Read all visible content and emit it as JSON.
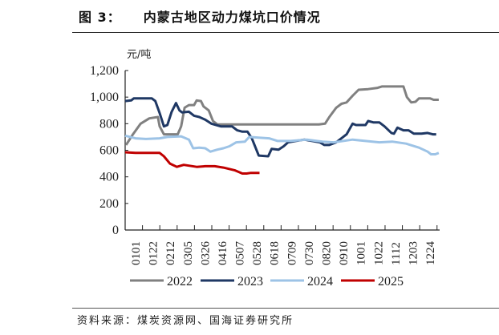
{
  "header": {
    "figure_no": "图 3：",
    "title": "内蒙古地区动力煤坑口价情况"
  },
  "footer": {
    "source": "资料来源：煤炭资源网、国海证券研究所"
  },
  "chart_data": {
    "type": "line",
    "title": "内蒙古地区动力煤坑口价情况",
    "ylabel": "元/吨",
    "ylim": [
      0,
      1200
    ],
    "yticks": [
      "0",
      "200",
      "400",
      "600",
      "800",
      "1,000",
      "1,200"
    ],
    "ytick_values": [
      0,
      200,
      400,
      600,
      800,
      1000,
      1200
    ],
    "xticks": [
      "0101",
      "0122",
      "0212",
      "0305",
      "0326",
      "0416",
      "0507",
      "0528",
      "0618",
      "0709",
      "0730",
      "0820",
      "0910",
      "1001",
      "1022",
      "1112",
      "1203",
      "1224"
    ],
    "grid": false,
    "legend": "bottom",
    "series": [
      {
        "name": "2022",
        "color": "#808080",
        "points": [
          [
            "0102",
            640
          ],
          [
            "0110",
            720
          ],
          [
            "0119",
            800
          ],
          [
            "0129",
            840
          ],
          [
            "0208",
            850
          ],
          [
            "0210",
            780
          ],
          [
            "0215",
            720
          ],
          [
            "0303",
            720
          ],
          [
            "0307",
            780
          ],
          [
            "0311",
            920
          ],
          [
            "0316",
            940
          ],
          [
            "0322",
            940
          ],
          [
            "0325",
            975
          ],
          [
            "0330",
            970
          ],
          [
            "0402",
            930
          ],
          [
            "0408",
            900
          ],
          [
            "0413",
            820
          ],
          [
            "0418",
            795
          ],
          [
            "0814",
            795
          ],
          [
            "0821",
            800
          ],
          [
            "0826",
            850
          ],
          [
            "0903",
            920
          ],
          [
            "0909",
            950
          ],
          [
            "0915",
            960
          ],
          [
            "0922",
            1010
          ],
          [
            "0929",
            1055
          ],
          [
            "1010",
            1060
          ],
          [
            "1021",
            1070
          ],
          [
            "1026",
            1080
          ],
          [
            "1120",
            1080
          ],
          [
            "1124",
            1000
          ],
          [
            "1129",
            960
          ],
          [
            "1204",
            965
          ],
          [
            "1208",
            990
          ],
          [
            "1221",
            990
          ],
          [
            "1225",
            980
          ],
          [
            "1231",
            980
          ]
        ]
      },
      {
        "name": "2023",
        "color": "#1f3864",
        "points": [
          [
            "0101",
            970
          ],
          [
            "0108",
            975
          ],
          [
            "0111",
            990
          ],
          [
            "0201",
            990
          ],
          [
            "0205",
            970
          ],
          [
            "0210",
            880
          ],
          [
            "0215",
            780
          ],
          [
            "0219",
            790
          ],
          [
            "0224",
            890
          ],
          [
            "0301",
            955
          ],
          [
            "0305",
            900
          ],
          [
            "0308",
            885
          ],
          [
            "0316",
            890
          ],
          [
            "0322",
            860
          ],
          [
            "0328",
            850
          ],
          [
            "0404",
            830
          ],
          [
            "0411",
            800
          ],
          [
            "0422",
            780
          ],
          [
            "0505",
            780
          ],
          [
            "0511",
            750
          ],
          [
            "0517",
            740
          ],
          [
            "0523",
            740
          ],
          [
            "0528",
            690
          ],
          [
            "0605",
            560
          ],
          [
            "0616",
            555
          ],
          [
            "0620",
            610
          ],
          [
            "0628",
            605
          ],
          [
            "0704",
            630
          ],
          [
            "0709",
            660
          ],
          [
            "0718",
            670
          ],
          [
            "0728",
            680
          ],
          [
            "0806",
            670
          ],
          [
            "0815",
            660
          ],
          [
            "0820",
            640
          ],
          [
            "0826",
            640
          ],
          [
            "0903",
            660
          ],
          [
            "0909",
            690
          ],
          [
            "0915",
            720
          ],
          [
            "0922",
            800
          ],
          [
            "0926",
            790
          ],
          [
            "1007",
            790
          ],
          [
            "1010",
            820
          ],
          [
            "1016",
            810
          ],
          [
            "1023",
            810
          ],
          [
            "1029",
            780
          ],
          [
            "1106",
            730
          ],
          [
            "1109",
            725
          ],
          [
            "1113",
            770
          ],
          [
            "1120",
            750
          ],
          [
            "1126",
            750
          ],
          [
            "1202",
            725
          ],
          [
            "1211",
            725
          ],
          [
            "1218",
            730
          ],
          [
            "1224",
            720
          ],
          [
            "1228",
            720
          ]
        ]
      },
      {
        "name": "2024",
        "color": "#9dc3e6",
        "points": [
          [
            "0101",
            710
          ],
          [
            "0113",
            690
          ],
          [
            "0125",
            685
          ],
          [
            "0210",
            690
          ],
          [
            "0219",
            700
          ],
          [
            "0307",
            705
          ],
          [
            "0316",
            680
          ],
          [
            "0321",
            615
          ],
          [
            "0328",
            620
          ],
          [
            "0404",
            615
          ],
          [
            "0410",
            590
          ],
          [
            "0418",
            605
          ],
          [
            "0425",
            615
          ],
          [
            "0502",
            630
          ],
          [
            "0510",
            660
          ],
          [
            "0520",
            665
          ],
          [
            "0525",
            700
          ],
          [
            "0605",
            695
          ],
          [
            "0617",
            690
          ],
          [
            "0627",
            670
          ],
          [
            "0712",
            670
          ],
          [
            "0731",
            680
          ],
          [
            "0818",
            665
          ],
          [
            "0831",
            660
          ],
          [
            "0922",
            680
          ],
          [
            "1007",
            670
          ],
          [
            "1023",
            660
          ],
          [
            "1107",
            665
          ],
          [
            "1123",
            650
          ],
          [
            "1208",
            620
          ],
          [
            "1218",
            590
          ],
          [
            "1222",
            570
          ],
          [
            "1227",
            570
          ],
          [
            "1231",
            580
          ]
        ]
      },
      {
        "name": "2025",
        "color": "#c00000",
        "points": [
          [
            "0101",
            585
          ],
          [
            "0113",
            580
          ],
          [
            "0210",
            580
          ],
          [
            "0215",
            555
          ],
          [
            "0222",
            500
          ],
          [
            "0302",
            475
          ],
          [
            "0310",
            490
          ],
          [
            "0325",
            475
          ],
          [
            "0404",
            480
          ],
          [
            "0415",
            480
          ],
          [
            "0425",
            470
          ],
          [
            "0508",
            450
          ],
          [
            "0517",
            425
          ],
          [
            "0522",
            425
          ],
          [
            "0527",
            430
          ],
          [
            "0606",
            430
          ]
        ]
      }
    ]
  }
}
